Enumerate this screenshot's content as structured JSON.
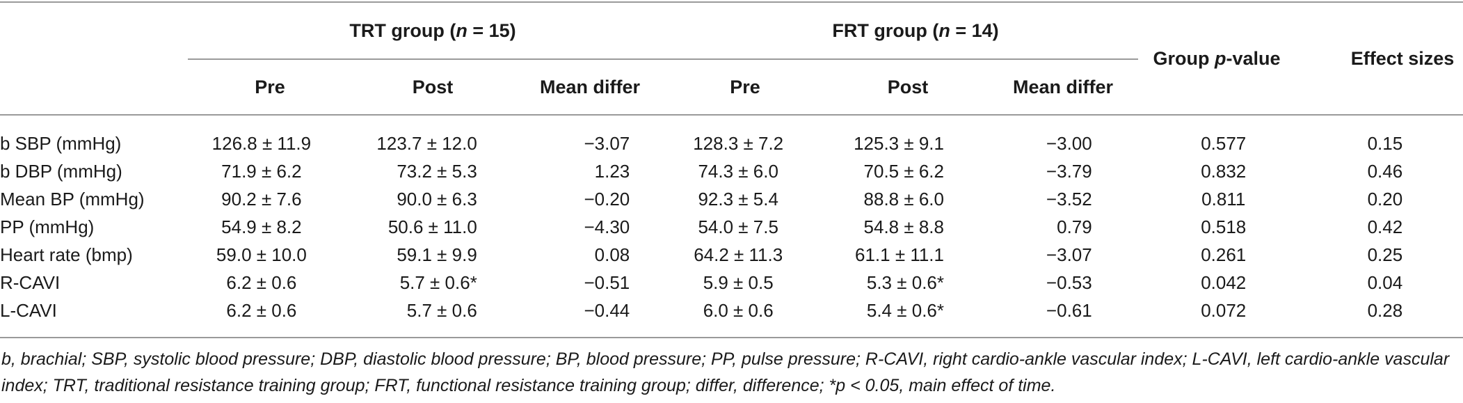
{
  "header": {
    "trt_group": "TRT group (",
    "trt_n": "n",
    "trt_eq": " = 15)",
    "frt_group": "FRT group (",
    "frt_n": "n",
    "frt_eq": " = 14)",
    "group_p_prefix": "Group ",
    "group_p_italic": "p",
    "group_p_suffix": "-value",
    "effect_sizes": "Effect sizes",
    "sub": [
      "Pre",
      "Post",
      "Mean differ",
      "Pre",
      "Post",
      "Mean differ"
    ]
  },
  "rows": [
    {
      "label": "b SBP (mmHg)",
      "trt_pre": "126.8 ± 11.9",
      "trt_post": "123.7 ± 12.0",
      "trt_diff": "−3.07",
      "frt_pre": "128.3 ± 7.2",
      "frt_post": "125.3 ± 9.1",
      "frt_diff": "−3.00",
      "p": "0.577",
      "es": "0.15"
    },
    {
      "label": "b DBP (mmHg)",
      "trt_pre": "71.9 ± 6.2",
      "trt_post": "73.2 ± 5.3",
      "trt_diff": "1.23",
      "frt_pre": "74.3 ± 6.0",
      "frt_post": "70.5 ± 6.2",
      "frt_diff": "−3.79",
      "p": "0.832",
      "es": "0.46"
    },
    {
      "label": "Mean BP (mmHg)",
      "trt_pre": "90.2 ± 7.6",
      "trt_post": "90.0 ± 6.3",
      "trt_diff": "−0.20",
      "frt_pre": "92.3 ± 5.4",
      "frt_post": "88.8 ± 6.0",
      "frt_diff": "−3.52",
      "p": "0.811",
      "es": "0.20"
    },
    {
      "label": "PP (mmHg)",
      "trt_pre": "54.9 ± 8.2",
      "trt_post": "50.6 ± 11.0",
      "trt_diff": "−4.30",
      "frt_pre": "54.0 ± 7.5",
      "frt_post": "54.8 ± 8.8",
      "frt_diff": "0.79",
      "p": "0.518",
      "es": "0.42"
    },
    {
      "label": "Heart rate (bmp)",
      "trt_pre": "59.0 ± 10.0",
      "trt_post": "59.1 ± 9.9",
      "trt_diff": "0.08",
      "frt_pre": "64.2 ± 11.3",
      "frt_post": "61.1 ± 11.1",
      "frt_diff": "−3.07",
      "p": "0.261",
      "es": "0.25"
    },
    {
      "label": "R-CAVI",
      "trt_pre": "6.2 ± 0.6",
      "trt_post": "5.7 ± 0.6*",
      "trt_diff": "−0.51",
      "frt_pre": "5.9 ± 0.5",
      "frt_post": "5.3 ± 0.6*",
      "frt_diff": "−0.53",
      "p": "0.042",
      "es": "0.04"
    },
    {
      "label": "L-CAVI",
      "trt_pre": "6.2 ± 0.6",
      "trt_post": "5.7 ± 0.6",
      "trt_diff": "−0.44",
      "frt_pre": "6.0 ± 0.6",
      "frt_post": "5.4 ± 0.6*",
      "frt_diff": "−0.61",
      "p": "0.072",
      "es": "0.28"
    }
  ],
  "footnote": "b, brachial; SBP, systolic blood pressure; DBP, diastolic blood pressure; BP, blood pressure; PP, pulse pressure; R-CAVI, right cardio-ankle vascular index; L-CAVI, left cardio-ankle vascular index; TRT, traditional resistance training group; FRT, functional resistance training group; differ, difference; *p < 0.05, main effect of time."
}
